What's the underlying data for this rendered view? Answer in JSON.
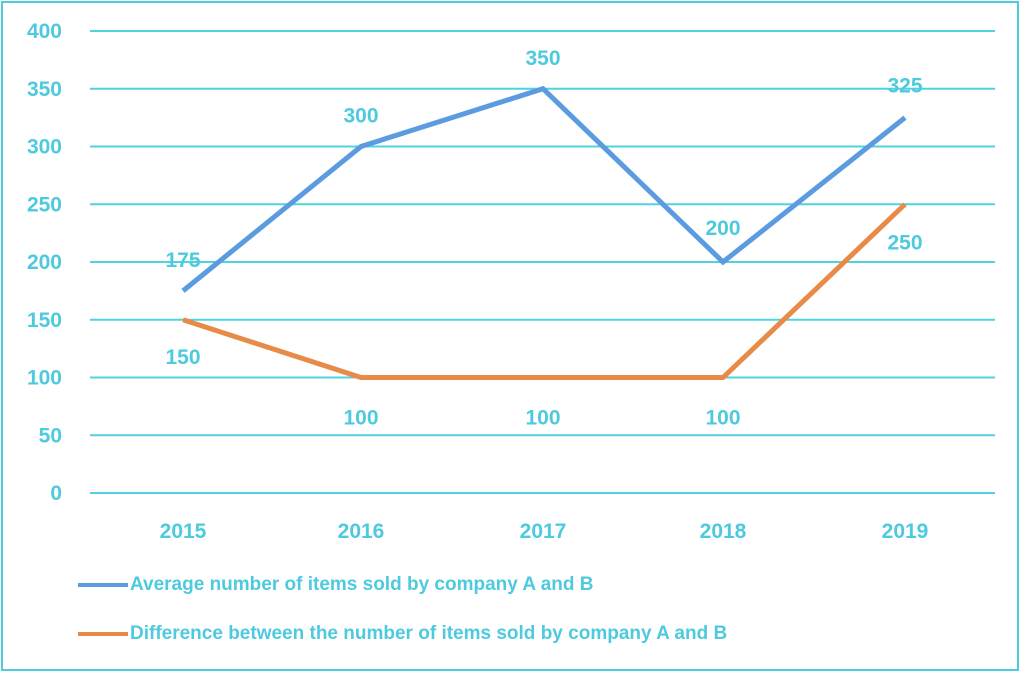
{
  "chart_data": {
    "type": "line",
    "title": "",
    "xlabel": "",
    "ylabel": "",
    "categories": [
      "2015",
      "2016",
      "2017",
      "2018",
      "2019"
    ],
    "ylim": [
      0,
      400
    ],
    "yticks": [
      "0",
      "50",
      "100",
      "150",
      "200",
      "250",
      "300",
      "350",
      "400"
    ],
    "ytick_values": [
      0,
      50,
      100,
      150,
      200,
      250,
      300,
      350,
      400
    ],
    "grid": true,
    "legend_position": "bottom",
    "series": [
      {
        "name": "Average number of items sold by company A and B",
        "color": "#5b9be0",
        "values": [
          175,
          300,
          350,
          200,
          325
        ],
        "labels": [
          "175",
          "300",
          "350",
          "200",
          "325"
        ]
      },
      {
        "name": "Difference between the number of items sold by company A and B",
        "color": "#e88b49",
        "values": [
          150,
          100,
          100,
          100,
          250
        ],
        "labels": [
          "150",
          "100",
          "100",
          "100",
          "250"
        ]
      }
    ]
  },
  "colors": {
    "text": "#4ecadf",
    "grid": "#4fd3e3",
    "frame": "#4fcbe0"
  }
}
